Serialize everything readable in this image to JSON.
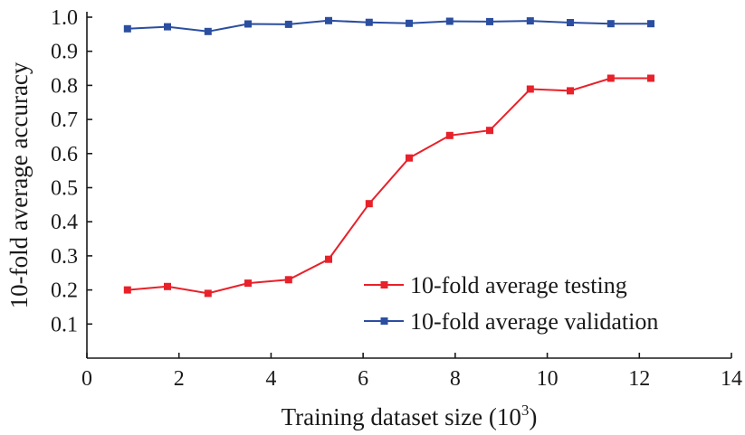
{
  "chart_data": {
    "type": "line",
    "xlabel": "Training dataset size (10",
    "xlabel_sup": "3",
    "xlabel_close": ")",
    "ylabel": "10-fold average accuracy",
    "xlim": [
      0,
      14
    ],
    "ylim": [
      0,
      1.0
    ],
    "x_ticks": [
      0,
      2,
      4,
      6,
      8,
      10,
      12,
      14
    ],
    "x_tick_labels": [
      "0",
      "2",
      "4",
      "6",
      "8",
      "10",
      "12",
      "14"
    ],
    "y_ticks": [
      0.1,
      0.2,
      0.3,
      0.4,
      0.5,
      0.6,
      0.7,
      0.8,
      0.9,
      1.0
    ],
    "y_tick_labels": [
      "0.1",
      "0.2",
      "0.3",
      "0.4",
      "0.5",
      "0.6",
      "0.7",
      "0.8",
      "0.9",
      "1.0"
    ],
    "grid": false,
    "legend_position": "bottom-right",
    "x": [
      0.88,
      1.75,
      2.63,
      3.5,
      4.38,
      5.25,
      6.13,
      7.0,
      7.88,
      8.75,
      9.63,
      10.5,
      11.38,
      12.25
    ],
    "series": [
      {
        "name": "10-fold average testing",
        "color": "#e8212a",
        "marker": "square",
        "values": [
          0.2,
          0.21,
          0.19,
          0.22,
          0.23,
          0.29,
          0.453,
          0.587,
          0.653,
          0.668,
          0.789,
          0.784,
          0.821,
          0.821
        ]
      },
      {
        "name": "10-fold average validation",
        "color": "#2b4ea0",
        "marker": "square",
        "values": [
          0.966,
          0.972,
          0.958,
          0.98,
          0.979,
          0.99,
          0.985,
          0.982,
          0.988,
          0.987,
          0.989,
          0.984,
          0.981,
          0.981
        ]
      }
    ]
  }
}
